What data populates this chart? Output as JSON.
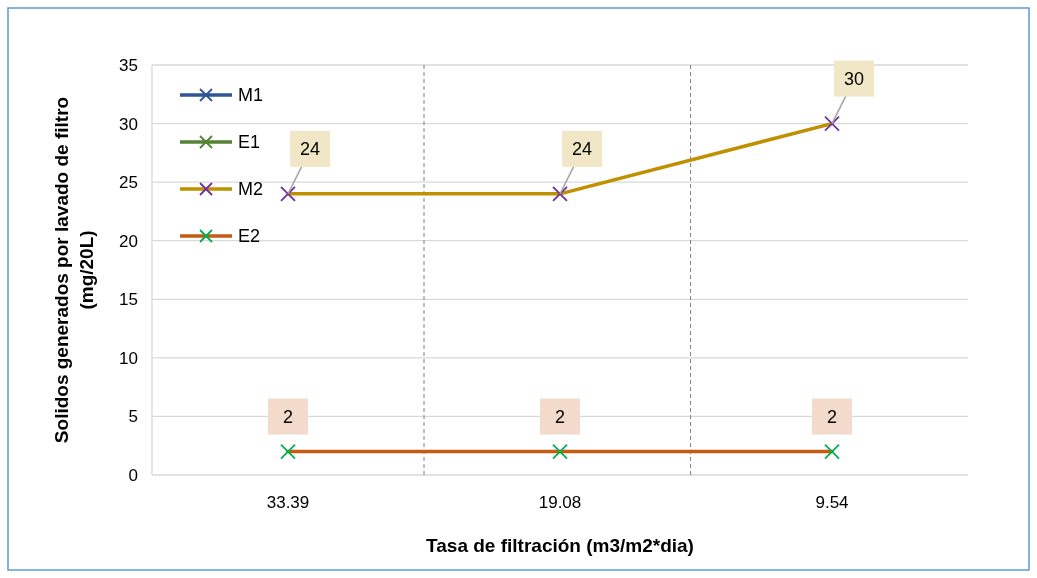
{
  "chart_data": {
    "type": "line",
    "xlabel": "Tasa de filtración (m3/m2*dia)",
    "ylabel": "Solidos generados por lavado de filtro (mg/20L)",
    "categories": [
      "33.39",
      "19.08",
      "9.54"
    ],
    "series": [
      {
        "name": "M1",
        "color": "#2f5597",
        "values": [
          null,
          null,
          null
        ]
      },
      {
        "name": "E1",
        "color": "#548235",
        "values": [
          null,
          null,
          null
        ]
      },
      {
        "name": "M2",
        "color": "#bf9000",
        "colors": [
          "#7030a0",
          "#7030a0",
          "#7030a0"
        ],
        "values": [
          24,
          24,
          30
        ]
      },
      {
        "name": "E2",
        "color": "#c55a11",
        "colors": [
          "#00b050",
          "#00b050",
          "#00b050"
        ],
        "values": [
          2,
          2,
          2
        ]
      }
    ],
    "ylim": [
      0,
      35
    ],
    "yticks": [
      0,
      5,
      10,
      15,
      20,
      25,
      30,
      35
    ],
    "grid": "y",
    "legend": "top left",
    "marker": "cross",
    "data_labels": true
  }
}
